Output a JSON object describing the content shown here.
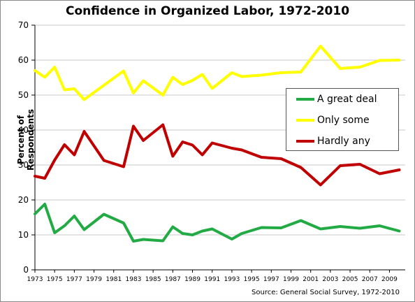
{
  "chart_data": {
    "type": "line",
    "title": "Confidence in Organized Labor, 1972-2010",
    "ylabel": "Percent of Respondents",
    "xlabel": "",
    "source": "Source: General Social Survey, 1972-2010",
    "ylim": [
      0,
      70
    ],
    "yticks": [
      0,
      10,
      20,
      30,
      40,
      50,
      60,
      70
    ],
    "xlim": [
      1973,
      2010.6
    ],
    "xticks": [
      1973,
      1975,
      1977,
      1979,
      1981,
      1983,
      1985,
      1987,
      1989,
      1991,
      1993,
      1995,
      1997,
      1999,
      2001,
      2003,
      2005,
      2007,
      2009
    ],
    "grid": true,
    "legend": "right",
    "x": [
      1973,
      1974,
      1975,
      1976,
      1977,
      1978,
      1980,
      1982,
      1983,
      1984,
      1986,
      1987,
      1988,
      1989,
      1990,
      1991,
      1993,
      1994,
      1996,
      1998,
      2000,
      2002,
      2004,
      2006,
      2008,
      2010
    ],
    "series": [
      {
        "name": "A great deal",
        "color": "#22aa44",
        "values": [
          16.0,
          18.8,
          10.6,
          12.6,
          15.4,
          11.5,
          15.9,
          13.4,
          8.2,
          8.7,
          8.3,
          12.3,
          10.4,
          10.0,
          11.1,
          11.7,
          8.8,
          10.4,
          12.1,
          12.0,
          14.1,
          11.7,
          12.4,
          11.9,
          12.6,
          11.1
        ]
      },
      {
        "name": "Only some",
        "color": "#ffff00",
        "values": [
          57.0,
          55.1,
          58.0,
          51.5,
          51.8,
          48.7,
          52.8,
          56.9,
          50.6,
          54.1,
          50.0,
          55.1,
          53.0,
          54.2,
          55.9,
          51.9,
          56.4,
          55.3,
          55.7,
          56.4,
          56.6,
          64.0,
          57.6,
          58.0,
          59.9,
          60.0
        ]
      },
      {
        "name": "Hardly any",
        "color": "#c00000",
        "values": [
          26.8,
          26.2,
          31.4,
          35.8,
          32.9,
          39.6,
          31.3,
          29.5,
          41.1,
          37.0,
          41.5,
          32.5,
          36.6,
          35.7,
          32.9,
          36.3,
          34.8,
          34.3,
          32.2,
          31.8,
          29.3,
          24.3,
          29.8,
          30.2,
          27.5,
          28.6
        ]
      }
    ]
  }
}
